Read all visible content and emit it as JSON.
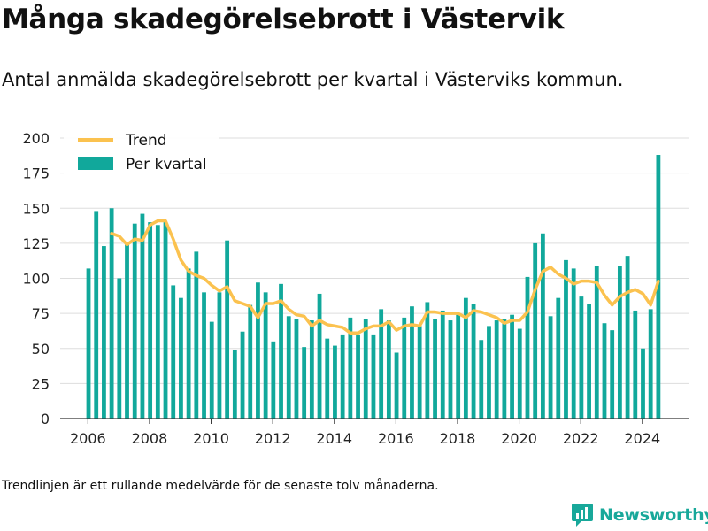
{
  "title": "Många skadegörelsebrott i Västervik",
  "subtitle": "Antal anmälda skadegörelsebrott per kvartal i Västerviks kommun.",
  "note": "Trendlinjen är ett rullande medelvärde för de senaste tolv månaderna.",
  "brand": {
    "name": "Newsworthy",
    "icon": "newsworthy-logo-icon"
  },
  "colors": {
    "bars": "#11a89b",
    "trend": "#fbc24f",
    "grid": "#dddddd",
    "axis": "#333333"
  },
  "chart_data": {
    "type": "bar",
    "title": "",
    "xlabel": "",
    "ylabel": "",
    "ylim": [
      0,
      200
    ],
    "xlim": [
      2005.1,
      2025.5
    ],
    "yticks": [
      0,
      25,
      50,
      75,
      100,
      125,
      150,
      175,
      200
    ],
    "xticks": [
      2006,
      2008,
      2010,
      2012,
      2014,
      2016,
      2018,
      2020,
      2022,
      2024
    ],
    "grid": true,
    "legend": {
      "position": "top-left",
      "entries": [
        "Trend",
        "Per kvartal"
      ]
    },
    "x": [
      "2006 Q1",
      "2006 Q2",
      "2006 Q3",
      "2006 Q4",
      "2007 Q1",
      "2007 Q2",
      "2007 Q3",
      "2007 Q4",
      "2008 Q1",
      "2008 Q2",
      "2008 Q3",
      "2008 Q4",
      "2009 Q1",
      "2009 Q2",
      "2009 Q3",
      "2009 Q4",
      "2010 Q1",
      "2010 Q2",
      "2010 Q3",
      "2010 Q4",
      "2011 Q1",
      "2011 Q2",
      "2011 Q3",
      "2011 Q4",
      "2012 Q1",
      "2012 Q2",
      "2012 Q3",
      "2012 Q4",
      "2013 Q1",
      "2013 Q2",
      "2013 Q3",
      "2013 Q4",
      "2014 Q1",
      "2014 Q2",
      "2014 Q3",
      "2014 Q4",
      "2015 Q1",
      "2015 Q2",
      "2015 Q3",
      "2015 Q4",
      "2016 Q1",
      "2016 Q2",
      "2016 Q3",
      "2016 Q4",
      "2017 Q1",
      "2017 Q2",
      "2017 Q3",
      "2017 Q4",
      "2018 Q1",
      "2018 Q2",
      "2018 Q3",
      "2018 Q4",
      "2019 Q1",
      "2019 Q2",
      "2019 Q3",
      "2019 Q4",
      "2020 Q1",
      "2020 Q2",
      "2020 Q3",
      "2020 Q4",
      "2021 Q1",
      "2021 Q2",
      "2021 Q3",
      "2021 Q4",
      "2022 Q1",
      "2022 Q2",
      "2022 Q3",
      "2022 Q4",
      "2023 Q1",
      "2023 Q2",
      "2023 Q3",
      "2023 Q4",
      "2024 Q1",
      "2024 Q2",
      "2024 Q3"
    ],
    "series": [
      {
        "name": "Per kvartal",
        "kind": "bar",
        "values": [
          107,
          148,
          123,
          150,
          100,
          125,
          139,
          146,
          140,
          138,
          140,
          95,
          86,
          107,
          119,
          90,
          69,
          90,
          127,
          49,
          62,
          81,
          97,
          90,
          55,
          96,
          73,
          71,
          51,
          70,
          89,
          57,
          52,
          60,
          72,
          60,
          71,
          60,
          78,
          70,
          47,
          72,
          80,
          66,
          83,
          71,
          77,
          70,
          74,
          86,
          82,
          56,
          66,
          70,
          71,
          74,
          64,
          101,
          125,
          132,
          73,
          86,
          113,
          107,
          87,
          82,
          109,
          68,
          63,
          109,
          116,
          77,
          50,
          78,
          188
        ]
      },
      {
        "name": "Trend",
        "kind": "line",
        "values": [
          null,
          null,
          null,
          132,
          130,
          124,
          128,
          127,
          138,
          141,
          141,
          128,
          113,
          105,
          102,
          100,
          95,
          91,
          94,
          84,
          82,
          80,
          72,
          82,
          82,
          84,
          78,
          74,
          73,
          66,
          70,
          67,
          66,
          65,
          61,
          61,
          64,
          66,
          66,
          69,
          63,
          66,
          67,
          66,
          76,
          76,
          75,
          75,
          75,
          72,
          77,
          76,
          74,
          72,
          68,
          70,
          70,
          76,
          92,
          105,
          108,
          103,
          100,
          96,
          98,
          98,
          97,
          88,
          81,
          87,
          90,
          92,
          89,
          81,
          98
        ]
      }
    ]
  }
}
